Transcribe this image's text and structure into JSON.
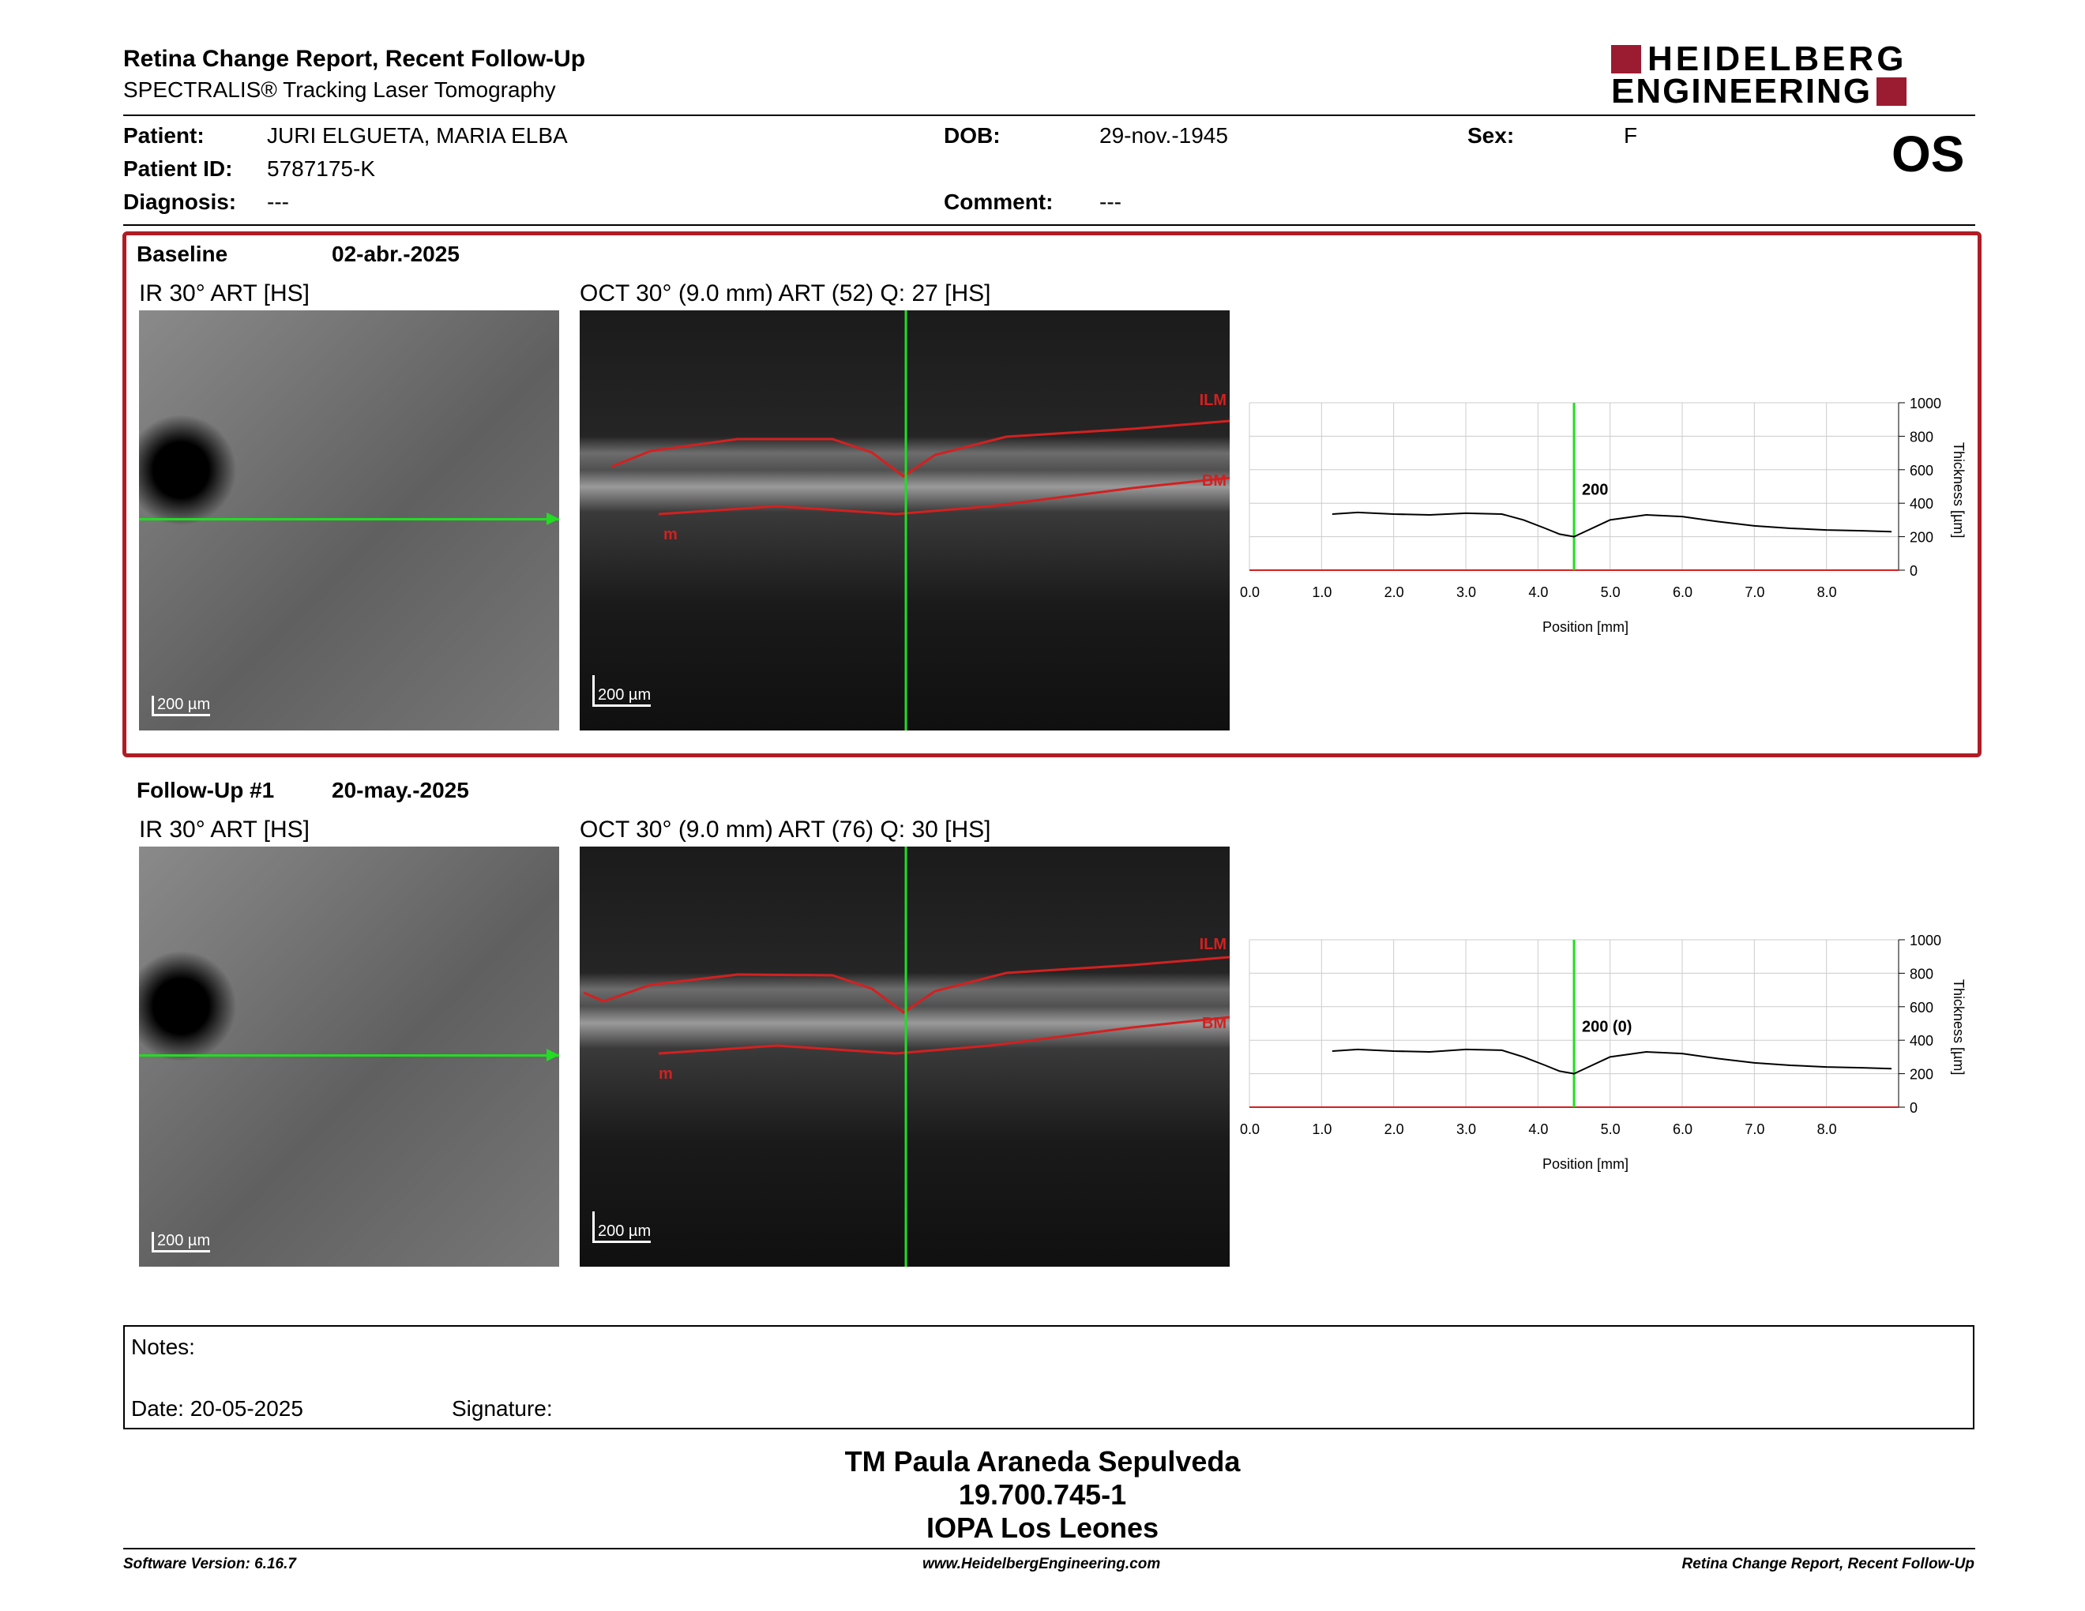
{
  "header": {
    "title": "Retina Change Report, Recent Follow-Up",
    "subtitle": "SPECTRALIS® Tracking Laser Tomography",
    "logo_line1": "HEIDELBERG",
    "logo_line2": "ENGINEERING",
    "eye": "OS"
  },
  "patient": {
    "patient_label": "Patient:",
    "patient_value": "JURI ELGUETA, MARIA ELBA",
    "id_label": "Patient ID:",
    "id_value": "5787175-K",
    "diagnosis_label": "Diagnosis:",
    "diagnosis_value": "---",
    "dob_label": "DOB:",
    "dob_value": "29-nov.-1945",
    "comment_label": "Comment:",
    "comment_value": "---",
    "sex_label": "Sex:",
    "sex_value": "F"
  },
  "exams": [
    {
      "label": "Baseline",
      "date": "02-abr.-2025",
      "ir_title": "IR 30° ART [HS]",
      "oct_title": "OCT 30° (9.0 mm) ART (52) Q: 27 [HS]",
      "scale": "200 µm",
      "marker": "200"
    },
    {
      "label": "Follow-Up #1",
      "date": "20-may.-2025",
      "ir_title": "IR 30° ART [HS]",
      "oct_title": "OCT 30° (9.0 mm) ART (76) Q: 30 [HS]",
      "scale": "200 µm",
      "marker": "200 (0)"
    }
  ],
  "oct_labels": {
    "ilm": "ILM",
    "bm": "BM",
    "m": "m"
  },
  "chart_data": [
    {
      "type": "line",
      "xlabel": "Position [mm]",
      "ylabel": "Thickness [µm]",
      "xlim": [
        0,
        9
      ],
      "ylim": [
        0,
        1000
      ],
      "x_ticks": [
        "0.0",
        "1.0",
        "2.0",
        "3.0",
        "4.0",
        "5.0",
        "6.0",
        "7.0",
        "8.0"
      ],
      "y_ticks": [
        "0",
        "200",
        "400",
        "600",
        "800",
        "1000"
      ],
      "cursor_x": 4.5,
      "x": [
        1.15,
        1.5,
        2,
        2.5,
        3,
        3.5,
        3.8,
        4.1,
        4.3,
        4.5,
        4.7,
        5,
        5.5,
        6,
        6.5,
        7,
        7.5,
        8,
        8.5,
        8.9
      ],
      "y": [
        335,
        345,
        335,
        330,
        340,
        335,
        300,
        250,
        215,
        200,
        240,
        300,
        330,
        320,
        290,
        265,
        250,
        240,
        235,
        230
      ]
    },
    {
      "type": "line",
      "xlabel": "Position [mm]",
      "ylabel": "Thickness [µm]",
      "xlim": [
        0,
        9
      ],
      "ylim": [
        0,
        1000
      ],
      "x_ticks": [
        "0.0",
        "1.0",
        "2.0",
        "3.0",
        "4.0",
        "5.0",
        "6.0",
        "7.0",
        "8.0"
      ],
      "y_ticks": [
        "0",
        "200",
        "400",
        "600",
        "800",
        "1000"
      ],
      "cursor_x": 4.5,
      "x": [
        1.15,
        1.5,
        2,
        2.5,
        3,
        3.5,
        3.8,
        4.1,
        4.3,
        4.5,
        4.7,
        5,
        5.5,
        6,
        6.5,
        7,
        7.5,
        8,
        8.5,
        8.9
      ],
      "y": [
        335,
        345,
        335,
        330,
        345,
        340,
        300,
        250,
        215,
        200,
        240,
        300,
        330,
        320,
        290,
        265,
        250,
        240,
        235,
        230
      ]
    }
  ],
  "notes": {
    "notes_label": "Notes:",
    "date_label": "Date: 20-05-2025",
    "signature_label": "Signature:"
  },
  "signature": {
    "name": "TM Paula Araneda Sepulveda",
    "rut": "19.700.745-1",
    "org": "IOPA Los Leones"
  },
  "footer": {
    "version": "Software Version: 6.16.7",
    "url": "www.HeidelbergEngineering.com",
    "report": "Retina Change Report, Recent Follow-Up"
  },
  "colors": {
    "brand_red": "#9b1b30",
    "frame_red": "#b01c25",
    "cursor_green": "#22dd22",
    "seg_red": "#d42020"
  }
}
